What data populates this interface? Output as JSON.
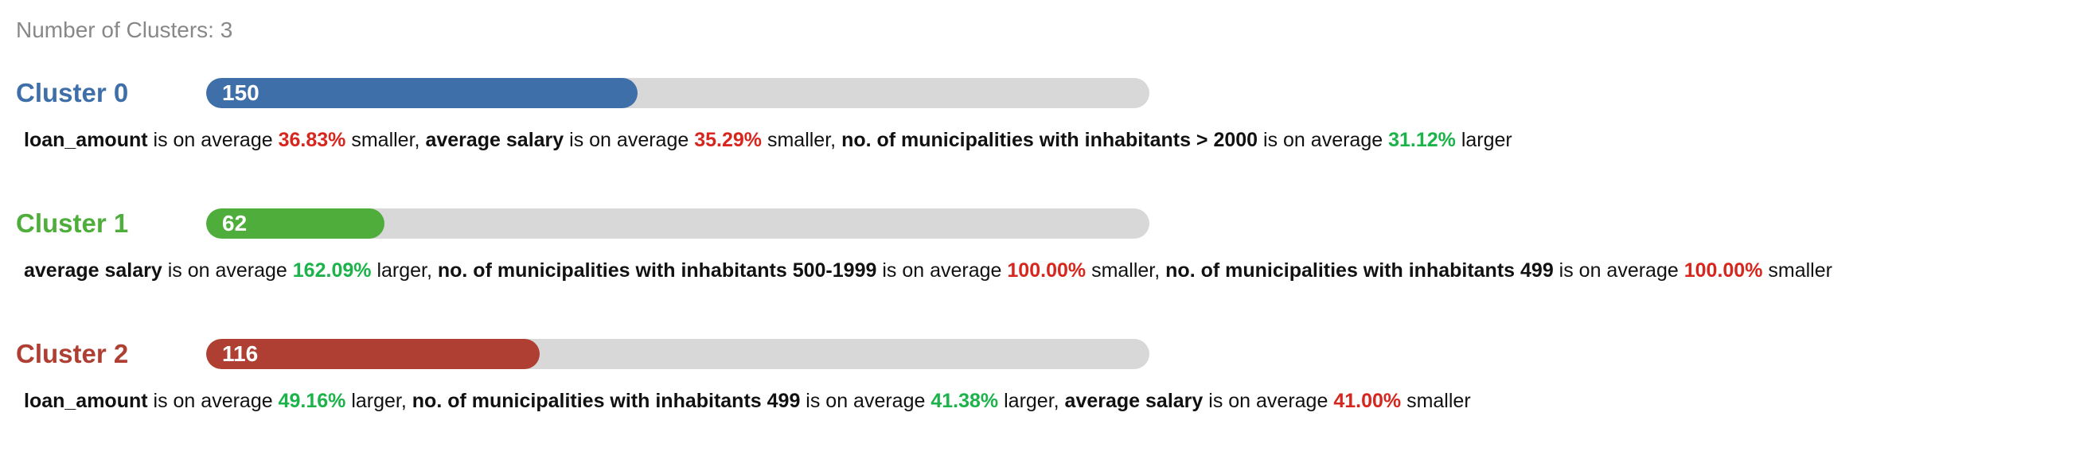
{
  "header": "Number of Clusters: 3",
  "clusters": [
    {
      "name": "Cluster 0",
      "count": 150,
      "color": "#3f6fa9",
      "features": [
        {
          "feature": "loan_amount",
          "text": "is on average",
          "pct": "36.83%",
          "direction": "smaller,",
          "color": "#d7261e"
        },
        {
          "feature": "average salary",
          "text": "is on average",
          "pct": "35.29%",
          "direction": "smaller,",
          "color": "#d7261e"
        },
        {
          "feature": "no. of municipalities with inhabitants > 2000",
          "text": "is on average",
          "pct": "31.12%",
          "direction": "larger",
          "color": "#1bb34a"
        }
      ]
    },
    {
      "name": "Cluster 1",
      "count": 62,
      "color": "#4fae3b",
      "features": [
        {
          "feature": "average salary",
          "text": "is on average",
          "pct": "162.09%",
          "direction": "larger,",
          "color": "#1bb34a"
        },
        {
          "feature": "no. of municipalities with inhabitants 500-1999",
          "text": "is on average",
          "pct": "100.00%",
          "direction": "smaller,",
          "color": "#d7261e"
        },
        {
          "feature": "no. of municipalities with inhabitants 499",
          "text": "is on average",
          "pct": "100.00%",
          "direction": "smaller",
          "color": "#d7261e"
        }
      ]
    },
    {
      "name": "Cluster 2",
      "count": 116,
      "color": "#b03f33",
      "features": [
        {
          "feature": "loan_amount",
          "text": "is on average",
          "pct": "49.16%",
          "direction": "larger,",
          "color": "#1bb34a"
        },
        {
          "feature": "no. of municipalities with inhabitants 499",
          "text": "is on average",
          "pct": "41.38%",
          "direction": "larger,",
          "color": "#1bb34a"
        },
        {
          "feature": "average salary",
          "text": "is on average",
          "pct": "41.00%",
          "direction": "smaller",
          "color": "#d7261e"
        }
      ]
    }
  ]
}
